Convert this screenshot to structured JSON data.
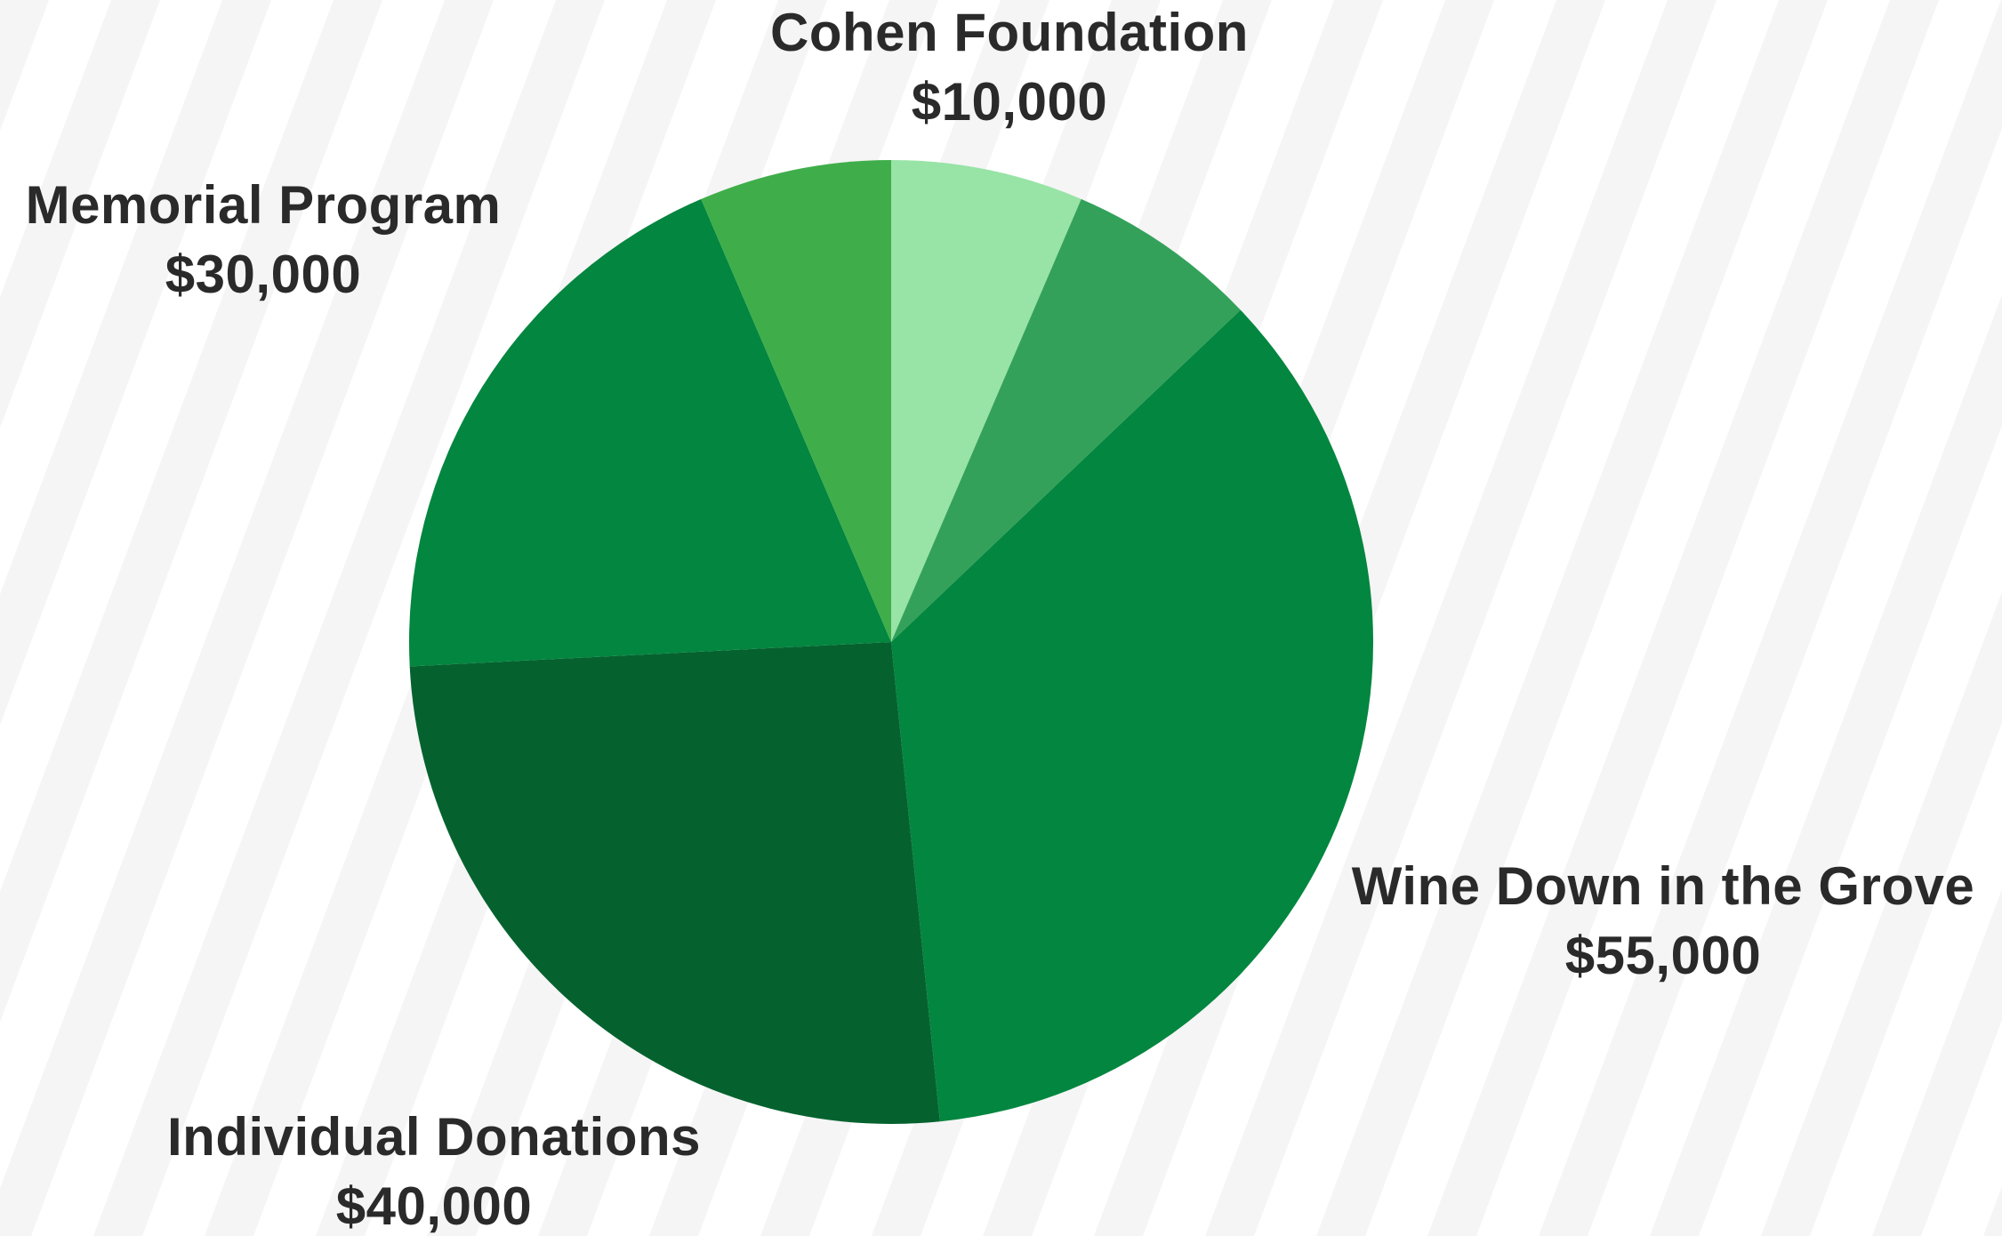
{
  "chart_data": {
    "type": "pie",
    "title": "",
    "start": "top",
    "direction": "clockwise",
    "slices": [
      {
        "label": "Cohen Foundation",
        "amount": "$10,000",
        "value": 10000,
        "color": "#98e3a6"
      },
      {
        "label": "",
        "amount": "",
        "value": 10000,
        "color": "#34a15a"
      },
      {
        "label": "Wine Down in the Grove",
        "amount": "$55,000",
        "value": 55000,
        "color": "#03863f"
      },
      {
        "label": "Individual Donations",
        "amount": "$40,000",
        "value": 40000,
        "color": "#05622f"
      },
      {
        "label": "Memorial Program",
        "amount": "$30,000",
        "value": 30000,
        "color": "#03863f"
      },
      {
        "label": "",
        "amount": "",
        "value": 10000,
        "color": "#3fae4a"
      }
    ]
  },
  "background": {
    "color": "#ffffff",
    "stripe_color": "#f5f5f5"
  }
}
